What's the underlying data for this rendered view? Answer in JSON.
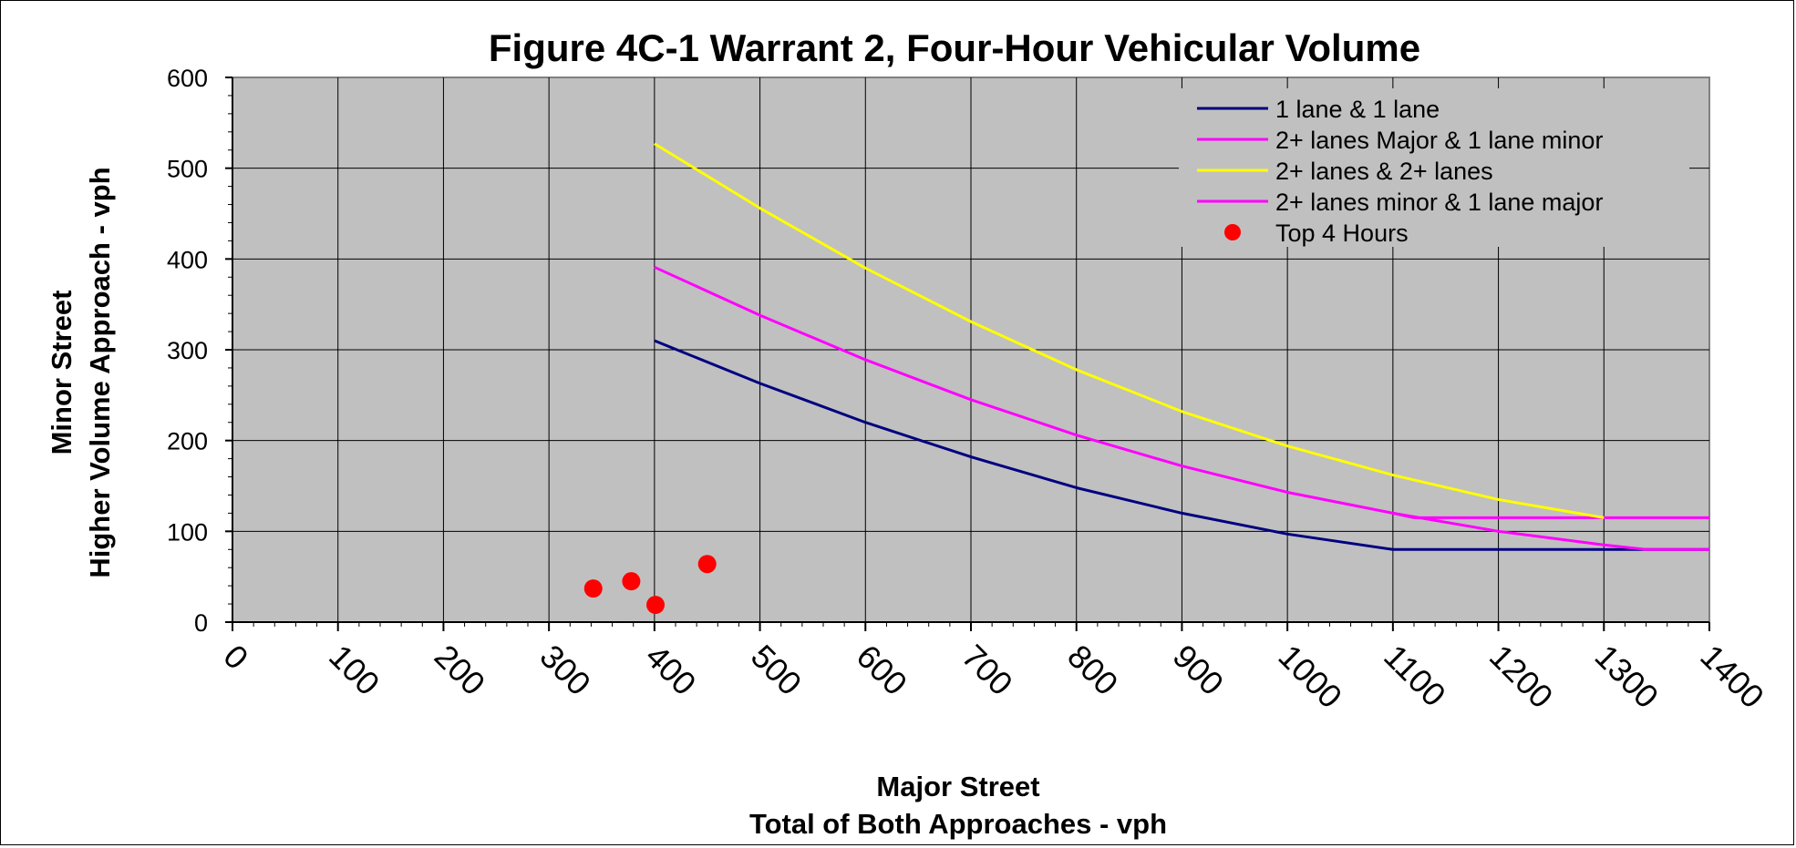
{
  "chart_data": {
    "type": "line",
    "title": "Figure 4C-1 Warrant 2, Four-Hour Vehicular Volume",
    "xlabel_lines": [
      "Major Street",
      "Total of Both Approaches - vph"
    ],
    "ylabel_lines": [
      "Minor Street",
      "Higher Volume Approach - vph"
    ],
    "xlim": [
      0,
      1400
    ],
    "ylim": [
      0,
      600
    ],
    "x_ticks": [
      "0",
      "100",
      "200",
      "300",
      "400",
      "500",
      "600",
      "700",
      "800",
      "900",
      "1000",
      "1100",
      "1200",
      "1300",
      "1400"
    ],
    "y_ticks": [
      "0",
      "100",
      "200",
      "300",
      "400",
      "500",
      "600"
    ],
    "grid": true,
    "legend_placement": "top-right",
    "plot_background": "#c0c0c0",
    "series": [
      {
        "name": "1 lane & 1 lane",
        "type": "line",
        "color": "#000080",
        "points": [
          [
            400,
            310
          ],
          [
            500,
            263
          ],
          [
            600,
            220
          ],
          [
            700,
            182
          ],
          [
            800,
            148
          ],
          [
            900,
            120
          ],
          [
            1000,
            97
          ],
          [
            1100,
            80
          ],
          [
            1200,
            80
          ],
          [
            1300,
            80
          ],
          [
            1400,
            80
          ]
        ]
      },
      {
        "name": "2+ lanes Major & 1 lane minor",
        "type": "line",
        "color": "#ff00ff",
        "points": [
          [
            400,
            391
          ],
          [
            500,
            338
          ],
          [
            600,
            289
          ],
          [
            700,
            245
          ],
          [
            800,
            206
          ],
          [
            900,
            172
          ],
          [
            1000,
            143
          ],
          [
            1100,
            120
          ],
          [
            1120,
            115
          ],
          [
            1200,
            115
          ],
          [
            1300,
            115
          ],
          [
            1400,
            115
          ]
        ]
      },
      {
        "name": "2+ lanes & 2+ lanes",
        "type": "line",
        "color": "#ffff00",
        "points": [
          [
            400,
            527
          ],
          [
            500,
            456
          ],
          [
            600,
            390
          ],
          [
            700,
            331
          ],
          [
            800,
            278
          ],
          [
            900,
            232
          ],
          [
            1000,
            194
          ],
          [
            1100,
            162
          ],
          [
            1200,
            135
          ],
          [
            1300,
            115
          ]
        ]
      },
      {
        "name": "2+ lanes minor & 1 lane major",
        "type": "line",
        "color": "#ff00ff",
        "points": [
          [
            1100,
            120
          ],
          [
            1200,
            100
          ],
          [
            1300,
            85
          ],
          [
            1340,
            80
          ],
          [
            1400,
            80
          ]
        ]
      },
      {
        "name": "Top 4 Hours",
        "type": "scatter",
        "color": "#ff0000",
        "points": [
          [
            342,
            37
          ],
          [
            378,
            45
          ],
          [
            401,
            19
          ],
          [
            450,
            64
          ]
        ]
      }
    ]
  }
}
